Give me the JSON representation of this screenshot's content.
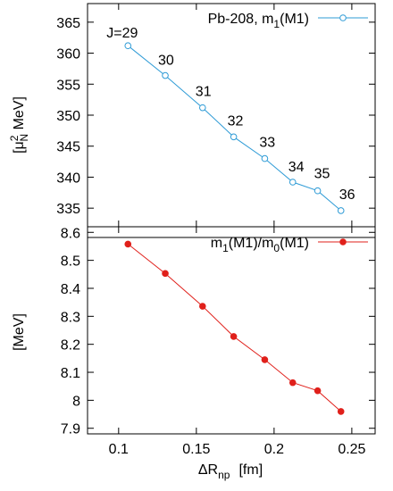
{
  "chart_data": [
    {
      "type": "line",
      "ylabel": "[μ²_N MeV]",
      "ylabel_parts": {
        "bracket_open": "[μ",
        "sup": "2",
        "sub": "N",
        "unit": " MeV]"
      },
      "ylim": [
        332,
        368
      ],
      "yticks": [
        "335",
        "340",
        "345",
        "350",
        "355",
        "360",
        "365"
      ],
      "ytick_values": [
        335,
        340,
        345,
        350,
        355,
        360,
        365
      ],
      "grid": false,
      "legend": {
        "placement": "top-right",
        "label_main": "Pb-208, m",
        "label_sub": "1",
        "label_tail": "(M1)"
      },
      "series": [
        {
          "name": "Pb-208, m1(M1)",
          "color": "#2e9bd6",
          "marker": "open-circle",
          "x": [
            0.106,
            0.13,
            0.154,
            0.174,
            0.194,
            0.212,
            0.228,
            0.243
          ],
          "y": [
            361.2,
            356.4,
            351.2,
            346.5,
            343.0,
            339.2,
            337.8,
            334.6
          ],
          "point_labels": [
            "J=29",
            "30",
            "31",
            "32",
            "33",
            "34",
            "35",
            "36"
          ]
        }
      ]
    },
    {
      "type": "line",
      "ylabel": "[MeV]",
      "ylim": [
        7.88,
        8.62
      ],
      "yticks": [
        "7.9",
        "8",
        "8.1",
        "8.2",
        "8.3",
        "8.4",
        "8.5",
        "8.6"
      ],
      "ytick_values": [
        7.9,
        8.0,
        8.1,
        8.2,
        8.3,
        8.4,
        8.5,
        8.6
      ],
      "xlim": [
        0.08,
        0.265
      ],
      "xticks": [
        "0.1",
        "0.15",
        "0.2",
        "0.25"
      ],
      "xtick_values": [
        0.1,
        0.15,
        0.2,
        0.25
      ],
      "xlabel": "ΔR_np [fm]",
      "xlabel_parts": {
        "main": "ΔR",
        "sub": "np",
        "unit": "[fm]"
      },
      "grid": false,
      "legend": {
        "placement": "top-right",
        "label_a": "m",
        "label_a_sub": "1",
        "label_b": "(M1)/m",
        "label_b_sub": "0",
        "label_c": "(M1)"
      },
      "series": [
        {
          "name": "m1(M1)/m0(M1)",
          "color": "#e0201b",
          "marker": "filled-circle",
          "x": [
            0.106,
            0.13,
            0.154,
            0.174,
            0.194,
            0.212,
            0.228,
            0.243
          ],
          "y": [
            8.558,
            8.453,
            8.336,
            8.228,
            8.145,
            8.063,
            8.034,
            7.96
          ]
        }
      ]
    }
  ]
}
